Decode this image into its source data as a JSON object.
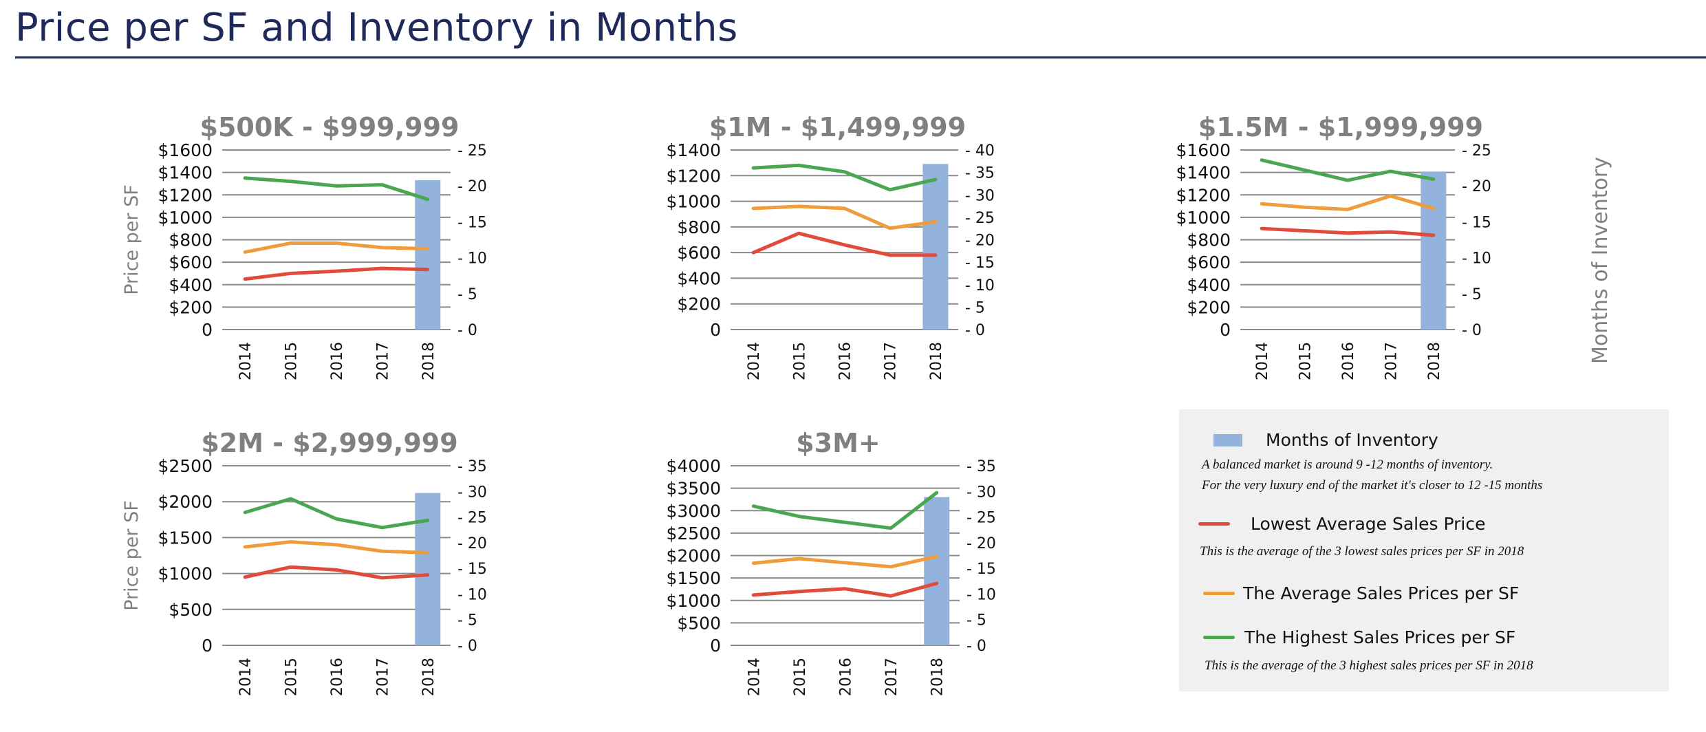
{
  "page": {
    "title": "Price per SF and Inventory in Months"
  },
  "colors": {
    "inventory": "#94b3dc",
    "lowest": "#e04b3c",
    "average": "#ef9d3c",
    "highest": "#4ba651",
    "title_navy": "#1f2a5a",
    "chart_title_gray": "#808080"
  },
  "legend": {
    "inventory_label": "Months of Inventory",
    "inventory_note_1": "A balanced market is around 9 -12 months of inventory.",
    "inventory_note_2": "For the very luxury end of the market it's closer to 12 -15 months",
    "lowest_label": "Lowest Average Sales Price",
    "lowest_note": "This is the average of the 3 lowest  sales prices per SF in 2018",
    "average_label": "The Average Sales Prices per SF",
    "highest_label": "The Highest Sales Prices per SF",
    "highest_note": "This is the average of the 3 highest  sales prices per SF in 2018"
  },
  "chart_data": [
    {
      "type": "line",
      "title": "$500K - $999,999",
      "ylabel": "Price per SF",
      "y2label": "",
      "categories": [
        "2014",
        "2015",
        "2016",
        "2017",
        "2018"
      ],
      "ylim": [
        0,
        1600
      ],
      "yticks": [
        "0",
        "$200",
        "$400",
        "$600",
        "$800",
        "$1000",
        "$1200",
        "$1400",
        "$1600"
      ],
      "y2lim": [
        0,
        25
      ],
      "y2ticks": [
        "- 0",
        "- 5",
        "- 10",
        "- 15",
        "- 20",
        "- 25"
      ],
      "series": [
        {
          "key": "highest",
          "values": [
            1350,
            1320,
            1280,
            1290,
            1160
          ]
        },
        {
          "key": "average",
          "values": [
            690,
            770,
            770,
            730,
            720
          ]
        },
        {
          "key": "lowest",
          "values": [
            450,
            500,
            520,
            545,
            535
          ]
        }
      ],
      "inventory": {
        "category": "2018",
        "value": 20.8
      }
    },
    {
      "type": "line",
      "title": "$1M - $1,499,999",
      "ylabel": "",
      "y2label": "",
      "categories": [
        "2014",
        "2015",
        "2016",
        "2017",
        "2018"
      ],
      "ylim": [
        0,
        1400
      ],
      "yticks": [
        "0",
        "$200",
        "$400",
        "$600",
        "$800",
        "$1000",
        "$1200",
        "$1400"
      ],
      "y2lim": [
        0,
        40
      ],
      "y2ticks": [
        "- 0",
        "- 5",
        "- 10",
        "- 15",
        "- 20",
        "- 25",
        "- 30",
        "- 35",
        "- 40"
      ],
      "series": [
        {
          "key": "highest",
          "values": [
            1260,
            1280,
            1230,
            1090,
            1170
          ]
        },
        {
          "key": "average",
          "values": [
            945,
            960,
            945,
            790,
            840
          ]
        },
        {
          "key": "lowest",
          "values": [
            600,
            750,
            660,
            580,
            580
          ]
        }
      ],
      "inventory": {
        "category": "2018",
        "value": 36.9
      }
    },
    {
      "type": "line",
      "title": "$1.5M - $1,999,999",
      "ylabel": "",
      "y2label": "Months of Inventory",
      "categories": [
        "2014",
        "2015",
        "2016",
        "2017",
        "2018"
      ],
      "ylim": [
        0,
        1600
      ],
      "yticks": [
        "0",
        "$200",
        "$400",
        "$600",
        "$800",
        "$1000",
        "$1200",
        "$1400",
        "$1600"
      ],
      "y2lim": [
        0,
        25
      ],
      "y2ticks": [
        "- 0",
        "- 5",
        "- 10",
        "- 15",
        "- 20",
        "- 25"
      ],
      "series": [
        {
          "key": "highest",
          "values": [
            1510,
            1420,
            1330,
            1410,
            1340
          ]
        },
        {
          "key": "average",
          "values": [
            1120,
            1090,
            1070,
            1190,
            1080
          ]
        },
        {
          "key": "lowest",
          "values": [
            900,
            880,
            860,
            870,
            840
          ]
        }
      ],
      "inventory": {
        "category": "2018",
        "value": 22
      }
    },
    {
      "type": "line",
      "title": "$2M - $2,999,999",
      "ylabel": "Price per SF",
      "y2label": "",
      "categories": [
        "2014",
        "2015",
        "2016",
        "2017",
        "2018"
      ],
      "ylim": [
        0,
        2500
      ],
      "yticks": [
        "0",
        "$500",
        "$1000",
        "$1500",
        "$2000",
        "$2500"
      ],
      "y2lim": [
        0,
        35
      ],
      "y2ticks": [
        "- 0",
        "- 5",
        "- 10",
        "- 15",
        "- 20",
        "- 25",
        "- 30",
        "- 35"
      ],
      "series": [
        {
          "key": "highest",
          "values": [
            1850,
            2040,
            1760,
            1640,
            1740
          ]
        },
        {
          "key": "average",
          "values": [
            1370,
            1440,
            1400,
            1310,
            1290
          ]
        },
        {
          "key": "lowest",
          "values": [
            950,
            1090,
            1050,
            940,
            980
          ]
        }
      ],
      "inventory": {
        "category": "2018",
        "value": 29.7
      }
    },
    {
      "type": "line",
      "title": "$3M+",
      "ylabel": "",
      "y2label": "",
      "categories": [
        "2014",
        "2015",
        "2016",
        "2017",
        "2018"
      ],
      "ylim": [
        0,
        4000
      ],
      "yticks": [
        "0",
        "$500",
        "$1000",
        "$1500",
        "$2000",
        "$2500",
        "$3000",
        "$3500",
        "$4000"
      ],
      "y2lim": [
        0,
        35
      ],
      "y2ticks": [
        "- 0",
        "- 5",
        "- 10",
        "- 15",
        "- 20",
        "- 25",
        "- 30",
        "- 35"
      ],
      "series": [
        {
          "key": "highest",
          "values": [
            3100,
            2870,
            2740,
            2610,
            3400
          ]
        },
        {
          "key": "average",
          "values": [
            1830,
            1930,
            1840,
            1750,
            1980
          ]
        },
        {
          "key": "lowest",
          "values": [
            1120,
            1200,
            1260,
            1100,
            1380
          ]
        }
      ],
      "inventory": {
        "category": "2018",
        "value": 28.9
      }
    }
  ]
}
